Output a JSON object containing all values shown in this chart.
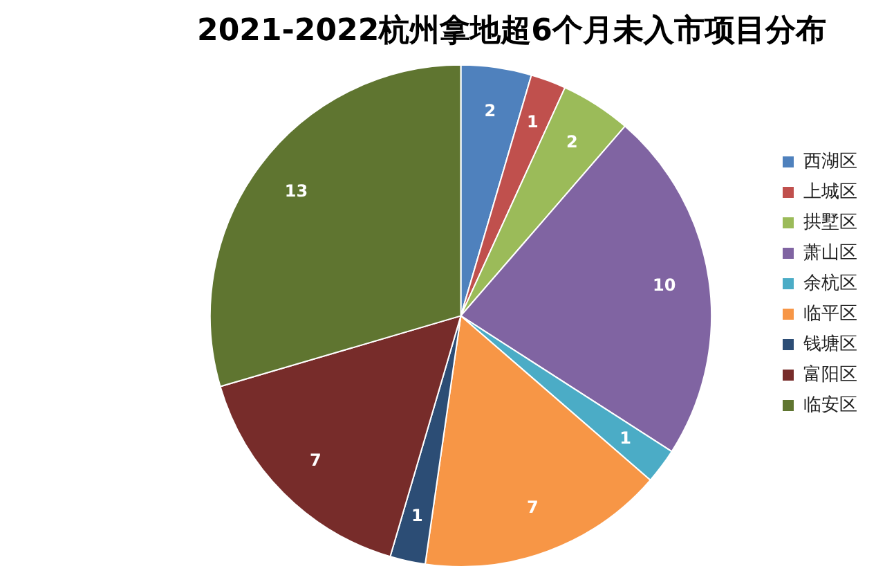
{
  "chart_data": {
    "type": "pie",
    "title": "2021-2022杭州拿地超6个月未入市项目分布",
    "categories": [
      "西湖区",
      "上城区",
      "拱墅区",
      "萧山区",
      "余杭区",
      "临平区",
      "钱塘区",
      "富阳区",
      "临安区"
    ],
    "values": [
      2,
      1,
      2,
      10,
      1,
      7,
      1,
      7,
      13
    ],
    "colors": [
      "#4f81bd",
      "#c0504d",
      "#9bbb59",
      "#8064a2",
      "#4bacc6",
      "#f79646",
      "#2c4d75",
      "#772c2a",
      "#5f7530"
    ],
    "data_labels": true,
    "legend": "right"
  }
}
